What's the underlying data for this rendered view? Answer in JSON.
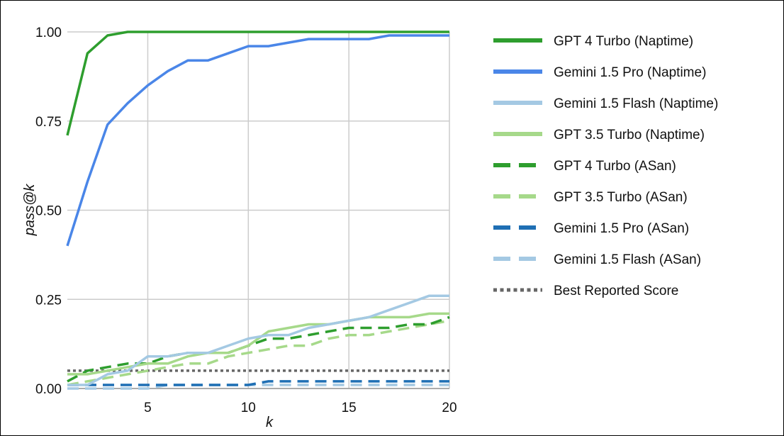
{
  "chart_data": {
    "type": "line",
    "xlabel": "k",
    "ylabel": "pass@k",
    "xlim": [
      1,
      20
    ],
    "ylim": [
      0,
      1
    ],
    "x_ticks": [
      "5",
      "10",
      "15",
      "20"
    ],
    "y_ticks": [
      "0.00",
      "0.25",
      "0.50",
      "0.75",
      "1.00"
    ],
    "grid": true,
    "legend_position": "right",
    "x": [
      1,
      2,
      3,
      4,
      5,
      6,
      7,
      8,
      9,
      10,
      11,
      12,
      13,
      14,
      15,
      16,
      17,
      18,
      19,
      20
    ],
    "series": [
      {
        "name": "GPT 4 Turbo (Naptime)",
        "color": "#2e9e2e",
        "style": "solid",
        "values": [
          0.71,
          0.94,
          0.99,
          1.0,
          1.0,
          1.0,
          1.0,
          1.0,
          1.0,
          1.0,
          1.0,
          1.0,
          1.0,
          1.0,
          1.0,
          1.0,
          1.0,
          1.0,
          1.0,
          1.0
        ]
      },
      {
        "name": "Gemini 1.5 Pro (Naptime)",
        "color": "#4a86e8",
        "style": "solid",
        "values": [
          0.4,
          0.58,
          0.74,
          0.8,
          0.85,
          0.89,
          0.92,
          0.92,
          0.94,
          0.96,
          0.96,
          0.97,
          0.98,
          0.98,
          0.98,
          0.98,
          0.99,
          0.99,
          0.99,
          0.99
        ]
      },
      {
        "name": "Gemini 1.5 Flash (Naptime)",
        "color": "#a4c9e3",
        "style": "solid",
        "values": [
          0.01,
          0.01,
          0.04,
          0.05,
          0.09,
          0.09,
          0.1,
          0.1,
          0.12,
          0.14,
          0.15,
          0.15,
          0.17,
          0.18,
          0.19,
          0.2,
          0.22,
          0.24,
          0.26,
          0.26
        ]
      },
      {
        "name": "GPT 3.5 Turbo (Naptime)",
        "color": "#a6d98a",
        "style": "solid",
        "values": [
          0.04,
          0.04,
          0.05,
          0.06,
          0.07,
          0.07,
          0.09,
          0.1,
          0.1,
          0.12,
          0.16,
          0.17,
          0.18,
          0.18,
          0.19,
          0.2,
          0.2,
          0.2,
          0.21,
          0.21
        ]
      },
      {
        "name": "GPT 4 Turbo (ASan)",
        "color": "#2e9e2e",
        "style": "dashed",
        "values": [
          0.02,
          0.05,
          0.06,
          0.07,
          0.07,
          0.09,
          0.1,
          0.1,
          0.1,
          0.12,
          0.14,
          0.14,
          0.15,
          0.16,
          0.17,
          0.17,
          0.17,
          0.18,
          0.18,
          0.2
        ]
      },
      {
        "name": "GPT 3.5 Turbo (ASan)",
        "color": "#a6d98a",
        "style": "dashed",
        "values": [
          0.01,
          0.02,
          0.03,
          0.04,
          0.05,
          0.06,
          0.07,
          0.07,
          0.09,
          0.1,
          0.11,
          0.12,
          0.12,
          0.14,
          0.15,
          0.15,
          0.16,
          0.17,
          0.18,
          0.19
        ]
      },
      {
        "name": "Gemini 1.5 Pro (ASan)",
        "color": "#1f6fb4",
        "style": "dashed",
        "values": [
          0.01,
          0.01,
          0.01,
          0.01,
          0.01,
          0.01,
          0.01,
          0.01,
          0.01,
          0.01,
          0.02,
          0.02,
          0.02,
          0.02,
          0.02,
          0.02,
          0.02,
          0.02,
          0.02,
          0.02
        ]
      },
      {
        "name": "Gemini 1.5 Flash (ASan)",
        "color": "#a4c9e3",
        "style": "dashed",
        "values": [
          0.0,
          0.0,
          0.0,
          0.0,
          0.0,
          0.01,
          0.01,
          0.01,
          0.01,
          0.01,
          0.01,
          0.01,
          0.01,
          0.01,
          0.01,
          0.01,
          0.01,
          0.01,
          0.01,
          0.01
        ]
      },
      {
        "name": "Best Reported Score",
        "color": "#666666",
        "style": "dotted",
        "values": [
          0.05,
          0.05,
          0.05,
          0.05,
          0.05,
          0.05,
          0.05,
          0.05,
          0.05,
          0.05,
          0.05,
          0.05,
          0.05,
          0.05,
          0.05,
          0.05,
          0.05,
          0.05,
          0.05,
          0.05
        ]
      }
    ]
  }
}
